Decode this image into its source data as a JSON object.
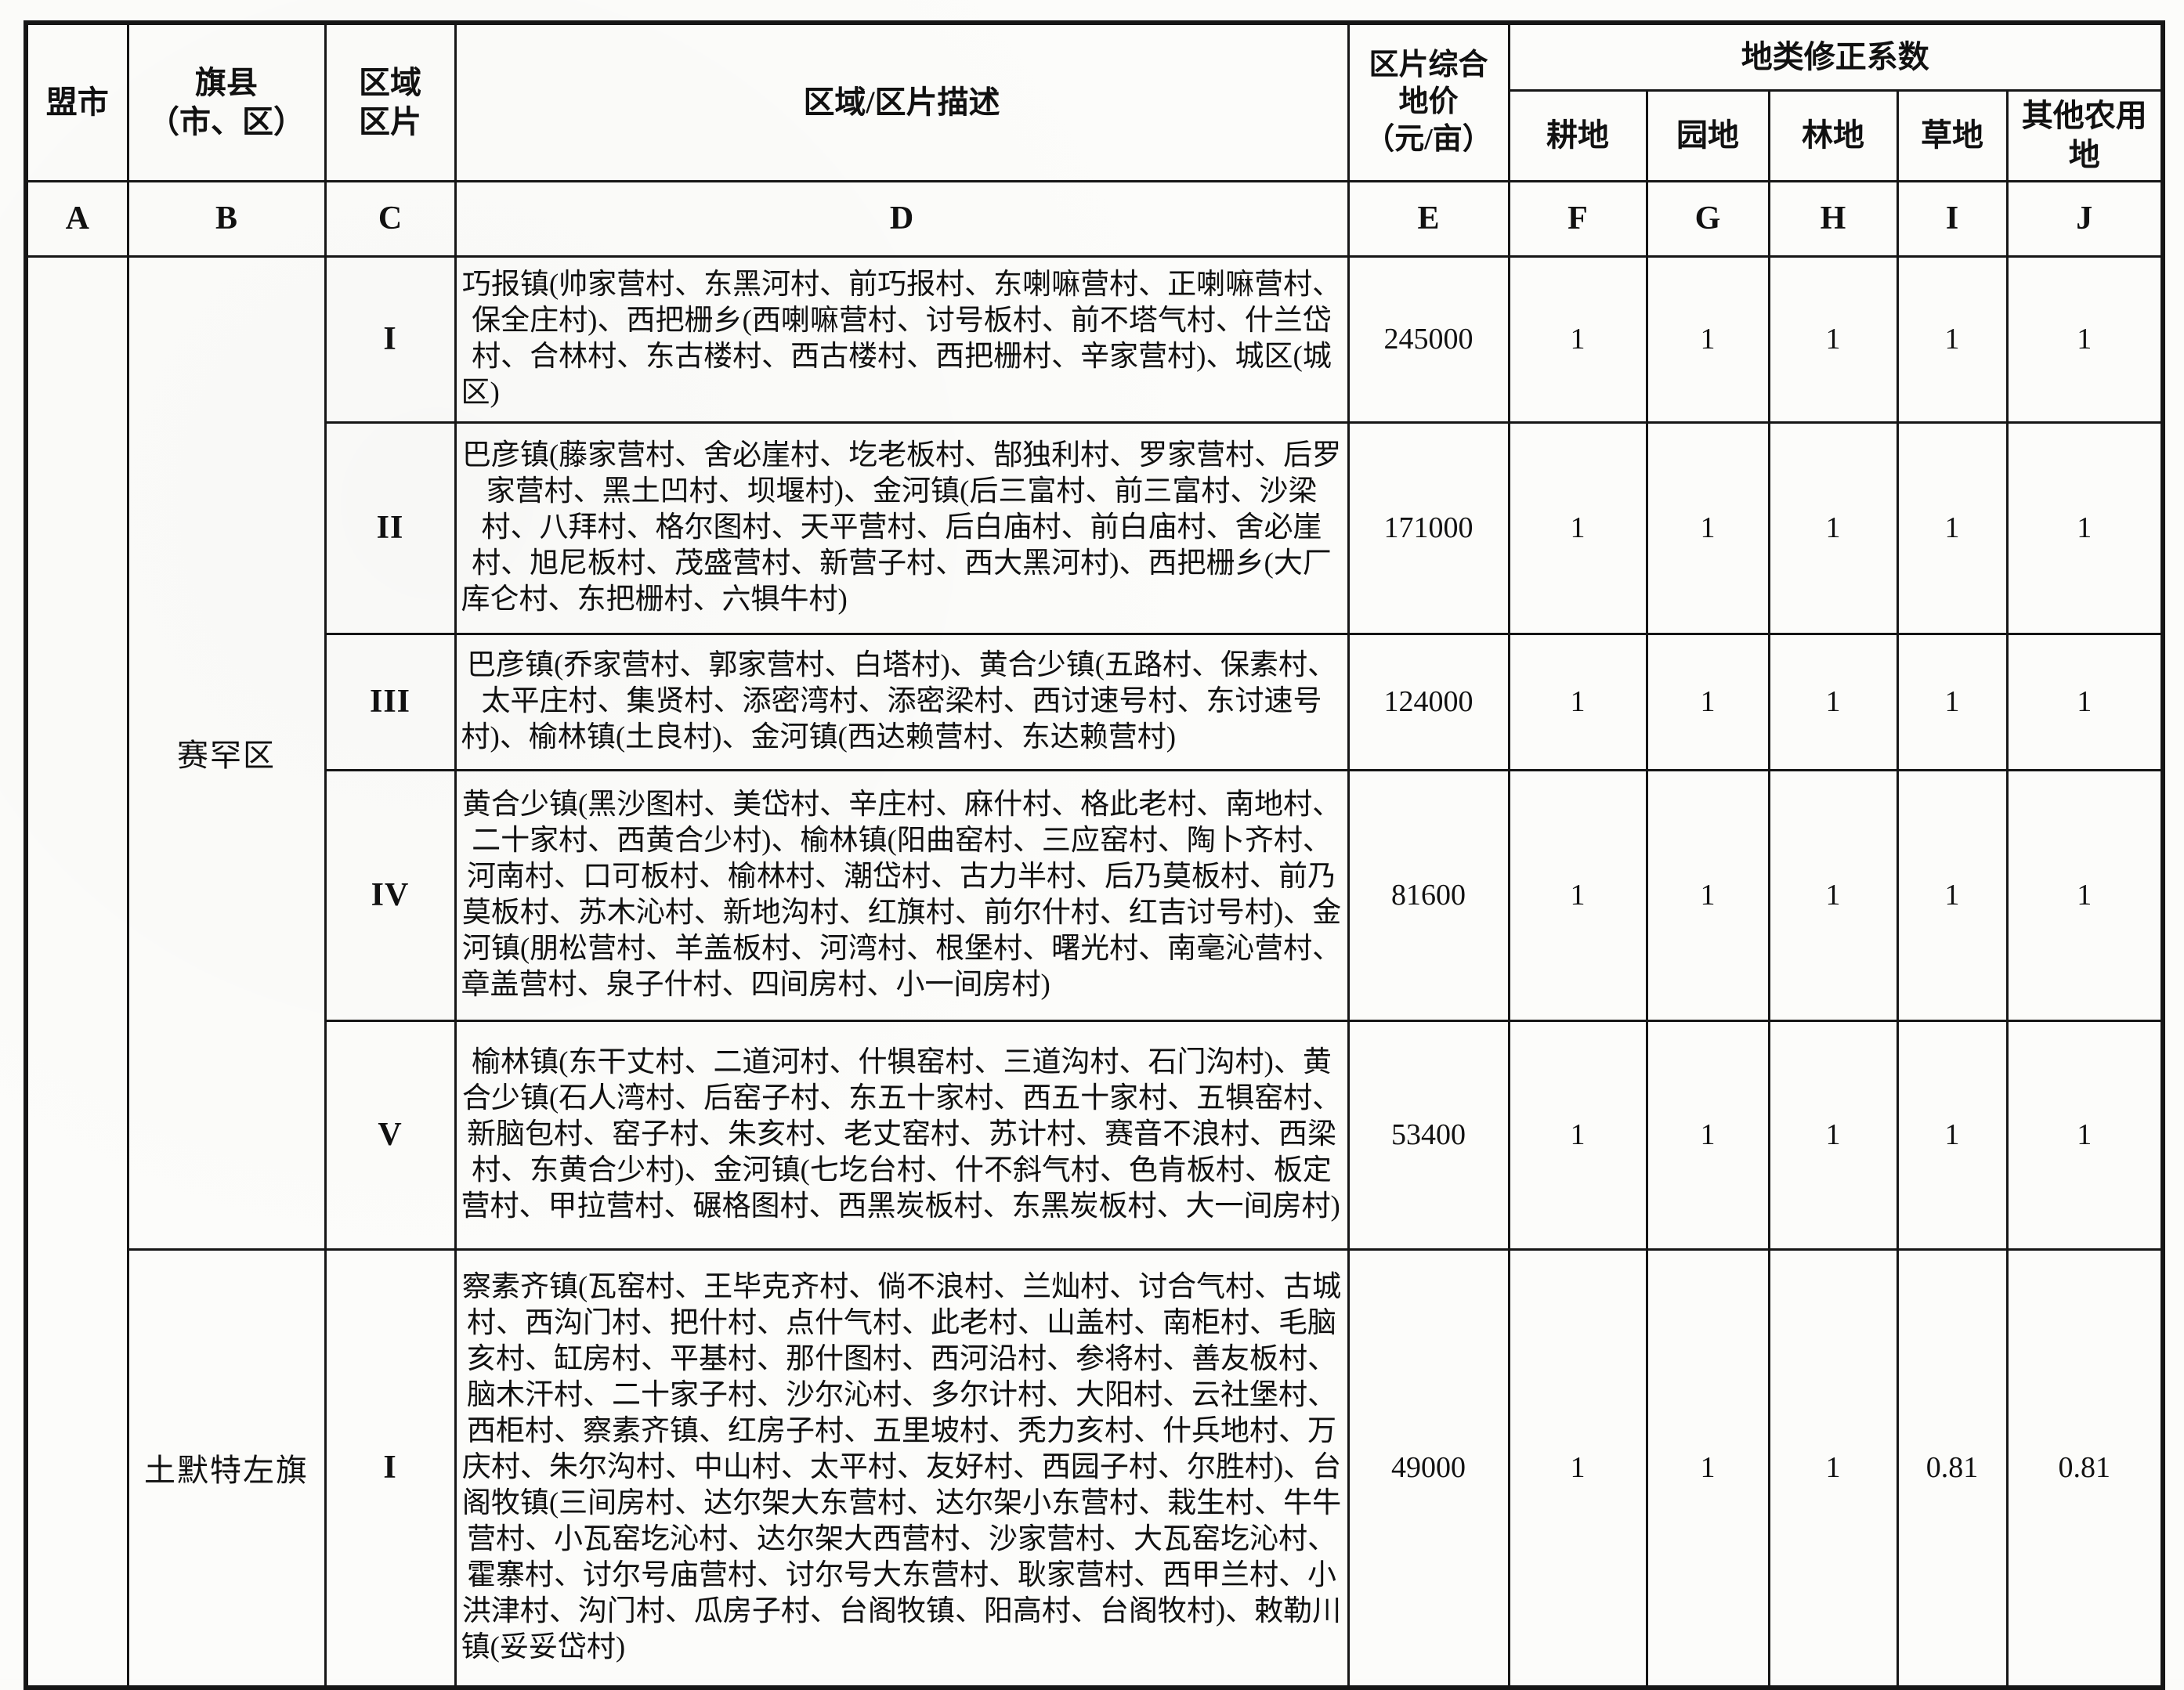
{
  "table": {
    "header": {
      "league": "盟市",
      "county": "旗县\n（市、区）",
      "zone": "区域\n区片",
      "description": "区域/区片描述",
      "price": "区片综合\n地价\n（元/亩）",
      "coeff_group": "地类修正系数",
      "coeffs": [
        "耕地",
        "园地",
        "林地",
        "草地",
        "其他农用地"
      ]
    },
    "column_letters": [
      "A",
      "B",
      "C",
      "D",
      "E",
      "F",
      "G",
      "H",
      "I",
      "J"
    ],
    "league_city": "",
    "groups": [
      {
        "name": "赛罕区",
        "rows": [
          {
            "zone": "I",
            "desc": "巧报镇(帅家营村、东黑河村、前巧报村、东喇嘛营村、正喇嘛营村、保全庄村)、西把栅乡(西喇嘛营村、讨号板村、前不塔气村、什兰岱村、合林村、东古楼村、西古楼村、西把栅村、辛家营村)、城区(城区)",
            "price": "245000",
            "coeffs": [
              "1",
              "1",
              "1",
              "1",
              "1"
            ]
          },
          {
            "zone": "II",
            "desc": "巴彦镇(藤家营村、舍必崖村、圪老板村、郜独利村、罗家营村、后罗家营村、黑土凹村、坝堰村)、金河镇(后三富村、前三富村、沙梁村、八拜村、格尔图村、天平营村、后白庙村、前白庙村、舍必崖村、旭尼板村、茂盛营村、新营子村、西大黑河村)、西把栅乡(大厂库仑村、东把栅村、六犋牛村)",
            "price": "171000",
            "coeffs": [
              "1",
              "1",
              "1",
              "1",
              "1"
            ]
          },
          {
            "zone": "III",
            "desc": "巴彦镇(乔家营村、郭家营村、白塔村)、黄合少镇(五路村、保素村、太平庄村、集贤村、添密湾村、添密梁村、西讨速号村、东讨速号村)、榆林镇(土良村)、金河镇(西达赖营村、东达赖营村)",
            "price": "124000",
            "coeffs": [
              "1",
              "1",
              "1",
              "1",
              "1"
            ]
          },
          {
            "zone": "IV",
            "desc": "黄合少镇(黑沙图村、美岱村、辛庄村、麻什村、格此老村、南地村、二十家村、西黄合少村)、榆林镇(阳曲窑村、三应窑村、陶卜齐村、河南村、口可板村、榆林村、潮岱村、古力半村、后乃莫板村、前乃莫板村、苏木沁村、新地沟村、红旗村、前尔什村、红吉讨号村)、金河镇(朋松营村、羊盖板村、河湾村、根堡村、曙光村、南毫沁营村、章盖营村、泉子什村、四间房村、小一间房村)",
            "price": "81600",
            "coeffs": [
              "1",
              "1",
              "1",
              "1",
              "1"
            ]
          },
          {
            "zone": "V",
            "desc": "榆林镇(东干丈村、二道河村、什犋窑村、三道沟村、石门沟村)、黄合少镇(石人湾村、后窑子村、东五十家村、西五十家村、五犋窑村、新脑包村、窑子村、朱亥村、老丈窑村、苏计村、赛音不浪村、西梁村、东黄合少村)、金河镇(七圪台村、什不斜气村、色肯板村、板定营村、甲拉营村、碾格图村、西黑炭板村、东黑炭板村、大一间房村)",
            "price": "53400",
            "coeffs": [
              "1",
              "1",
              "1",
              "1",
              "1"
            ]
          }
        ]
      },
      {
        "name": "土默特左旗",
        "rows": [
          {
            "zone": "I",
            "desc": "察素齐镇(瓦窑村、王毕克齐村、倘不浪村、兰灿村、讨合气村、古城村、西沟门村、把什村、点什气村、此老村、山盖村、南柜村、毛脑亥村、缸房村、平基村、那什图村、西河沿村、参将村、善友板村、脑木汗村、二十家子村、沙尔沁村、多尔计村、大阳村、云社堡村、西柜村、察素齐镇、红房子村、五里坡村、秃力亥村、什兵地村、万庆村、朱尔沟村、中山村、太平村、友好村、西园子村、尔胜村)、台阁牧镇(三间房村、达尔架大东营村、达尔架小东营村、栽生村、牛牛营村、小瓦窑圪沁村、达尔架大西营村、沙家营村、大瓦窑圪沁村、霍寨村、讨尔号庙营村、讨尔号大东营村、耿家营村、西甲兰村、小洪津村、沟门村、瓜房子村、台阁牧镇、阳高村、台阁牧村)、敕勒川镇(妥妥岱村)",
            "price": "49000",
            "coeffs": [
              "1",
              "1",
              "1",
              "0.81",
              "0.81"
            ]
          }
        ]
      }
    ]
  }
}
